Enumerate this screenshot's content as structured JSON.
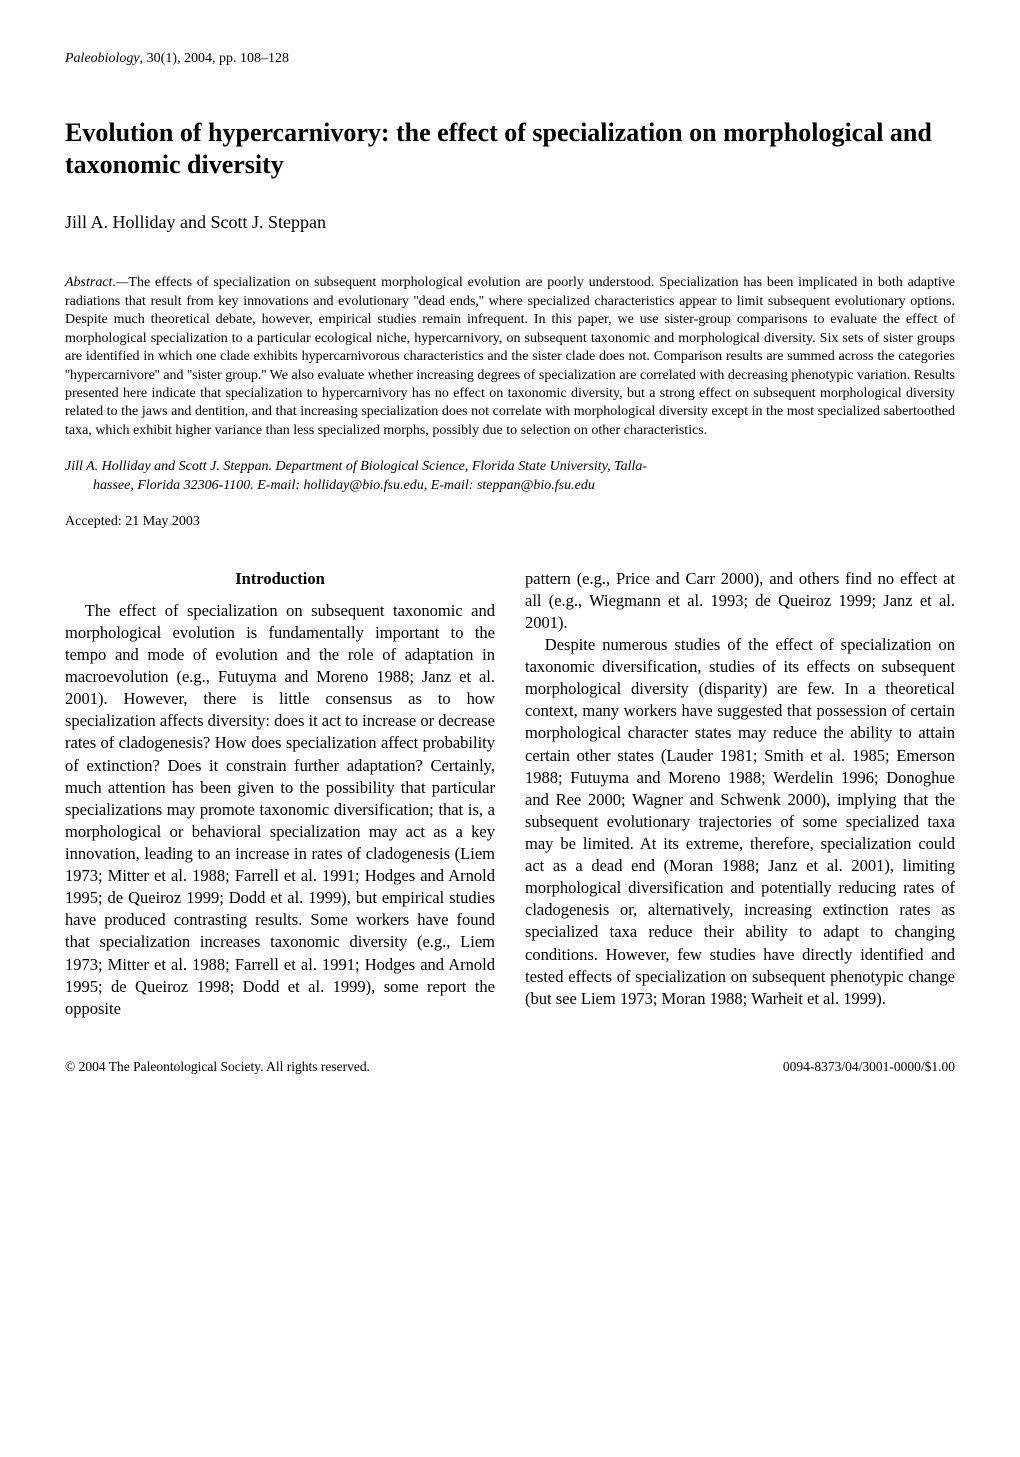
{
  "journal": {
    "name": "Paleobiology",
    "rest": ", 30(1), 2004, pp. 108–128"
  },
  "title": "Evolution of hypercarnivory: the effect of specialization on morphological and taxonomic diversity",
  "authors": "Jill A. Holliday and Scott J. Steppan",
  "abstract": {
    "label": "Abstract.—",
    "text": "The effects of specialization on subsequent morphological evolution are poorly understood. Specialization has been implicated in both adaptive radiations that result from key innovations and evolutionary ''dead ends,'' where specialized characteristics appear to limit subsequent evolutionary options. Despite much theoretical debate, however, empirical studies remain infrequent. In this paper, we use sister-group comparisons to evaluate the effect of morphological specialization to a particular ecological niche, hypercarnivory, on subsequent taxonomic and morphological diversity. Six sets of sister groups are identified in which one clade exhibits hypercarnivorous characteristics and the sister clade does not. Comparison results are summed across the categories ''hypercarnivore'' and ''sister group.'' We also evaluate whether increasing degrees of specialization are correlated with decreasing phenotypic variation. Results presented here indicate that specialization to hypercarnivory has no effect on taxonomic diversity, but a strong effect on subsequent morphological diversity related to the jaws and dentition, and that increasing specialization does not correlate with morphological diversity except in the most specialized sabertoothed taxa, which exhibit higher variance than less specialized morphs, possibly due to selection on other characteristics."
  },
  "affiliation": {
    "line1": "Jill A. Holliday and Scott J. Steppan.   Department of Biological Science, Florida State University, Talla-",
    "line2": "hassee, Florida 32306-1100. E-mail: holliday@bio.fsu.edu, E-mail: steppan@bio.fsu.edu"
  },
  "accepted": "Accepted:   21 May 2003",
  "section_heading": "Introduction",
  "col_left": {
    "p1": "The effect of specialization on subsequent taxonomic and morphological evolution is fundamentally important to the tempo and mode of evolution and the role of adaptation in macroevolution (e.g., Futuyma and Moreno 1988; Janz et al. 2001). However, there is little consensus as to how specialization affects diversity: does it act to increase or decrease rates of cladogenesis? How does specialization affect probability of extinction? Does it constrain further adaptation? Certainly, much attention has been given to the possibility that particular specializations may promote taxonomic diversification; that is, a morphological or behavioral specialization may act as a key innovation, leading to an increase in rates of cladogenesis (Liem 1973; Mitter et al. 1988; Farrell et al. 1991; Hodges and Arnold 1995; de Queiroz 1999; Dodd et al. 1999), but empirical studies have produced contrasting results. Some workers have found that specialization increases taxonomic diversity (e.g., Liem 1973; Mitter et al. 1988; Farrell et al. 1991; Hodges and Arnold 1995; de Queiroz 1998; Dodd et al. 1999), some report the opposite"
  },
  "col_right": {
    "p1": "pattern (e.g., Price and Carr 2000), and others find no effect at all (e.g., Wiegmann et al. 1993; de Queiroz 1999; Janz et al. 2001).",
    "p2": "Despite numerous studies of the effect of specialization on taxonomic diversification, studies of its effects on subsequent morphological diversity (disparity) are few. In a theoretical context, many workers have suggested that possession of certain morphological character states may reduce the ability to attain certain other states (Lauder 1981; Smith et al. 1985; Emerson 1988; Futuyma and Moreno 1988; Werdelin 1996; Donoghue and Ree 2000; Wagner and Schwenk 2000), implying that the subsequent evolutionary trajectories of some specialized taxa may be limited. At its extreme, therefore, specialization could act as a dead end (Moran 1988; Janz et al. 2001), limiting morphological diversification and potentially reducing rates of cladogenesis or, alternatively, increasing extinction rates as specialized taxa reduce their ability to adapt to changing conditions. However, few studies have directly identified and tested effects of specialization on subsequent phenotypic change (but see Liem 1973; Moran 1988; Warheit et al. 1999)."
  },
  "footer": {
    "left": "© 2004 The Paleontological Society. All rights reserved.",
    "right": "0094-8373/04/3001-0000/$1.00"
  }
}
